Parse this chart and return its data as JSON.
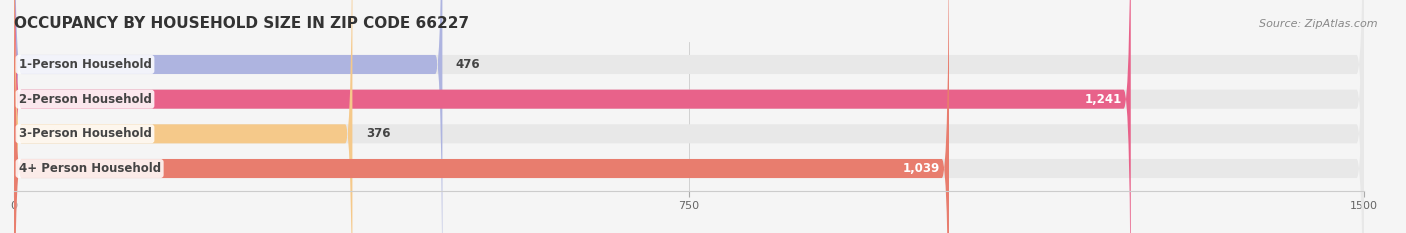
{
  "title": "OCCUPANCY BY HOUSEHOLD SIZE IN ZIP CODE 66227",
  "source": "Source: ZipAtlas.com",
  "categories": [
    "1-Person Household",
    "2-Person Household",
    "3-Person Household",
    "4+ Person Household"
  ],
  "values": [
    476,
    1241,
    376,
    1039
  ],
  "bar_colors": [
    "#aeb4e0",
    "#e8628a",
    "#f5c98a",
    "#e87d6e"
  ],
  "bar_bg_color": "#e8e8e8",
  "xlim": [
    0,
    1500
  ],
  "xticks": [
    0,
    750,
    1500
  ],
  "title_fontsize": 11,
  "source_fontsize": 8,
  "label_fontsize": 8.5,
  "value_fontsize": 8.5,
  "figwidth": 14.06,
  "figheight": 2.33,
  "dpi": 100
}
